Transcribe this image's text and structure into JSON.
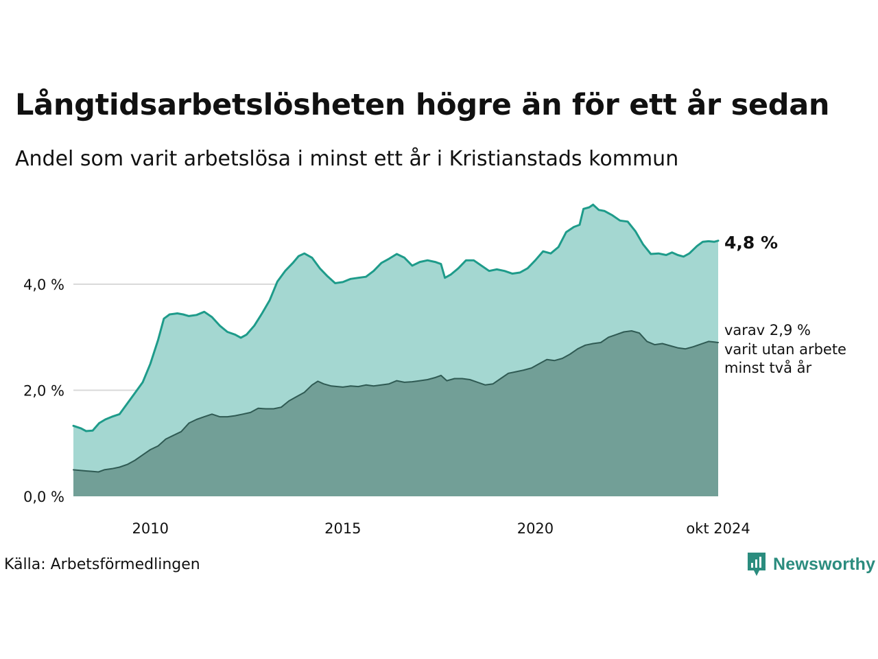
{
  "title": "Långtidsarbetslösheten högre än för ett år sedan",
  "subtitle": "Andel som varit arbetslösa i minst ett år i Kristianstads kommun",
  "source": "Källa: Arbetsförmedlingen",
  "logo_text": "Newsworthy",
  "colors": {
    "main_line": "#1e9b8a",
    "main_fill": "#a4d7d1",
    "sub_line": "#2f5a53",
    "sub_fill": "#729f97",
    "grid": "#d9d9d9",
    "text": "#111111"
  },
  "chart_data": {
    "type": "area",
    "x_tick_labels": [
      {
        "x": 2010,
        "label": "2010"
      },
      {
        "x": 2015,
        "label": "2015"
      },
      {
        "x": 2020,
        "label": "2020"
      },
      {
        "x": 2024.75,
        "label": "okt 2024"
      }
    ],
    "y_tick_labels": [
      {
        "y": 0,
        "label": "0,0 %"
      },
      {
        "y": 2,
        "label": "2,0 %"
      },
      {
        "y": 4,
        "label": "4,0 %"
      }
    ],
    "xlim": [
      2008.0,
      2024.75
    ],
    "ylim": [
      0,
      5.8
    ],
    "grid": true,
    "annotations": {
      "main_end": "4,8 %",
      "sub_end_lines": [
        "varav 2,9 %",
        "varit utan arbete",
        "minst två år"
      ]
    },
    "series": [
      {
        "key": "minst_ett_ar",
        "points": [
          [
            2008.0,
            1.33
          ],
          [
            2008.2,
            1.28
          ],
          [
            2008.33,
            1.23
          ],
          [
            2008.5,
            1.24
          ],
          [
            2008.67,
            1.38
          ],
          [
            2008.83,
            1.45
          ],
          [
            2009.0,
            1.5
          ],
          [
            2009.2,
            1.55
          ],
          [
            2009.4,
            1.75
          ],
          [
            2009.6,
            1.95
          ],
          [
            2009.8,
            2.15
          ],
          [
            2010.0,
            2.5
          ],
          [
            2010.2,
            2.95
          ],
          [
            2010.35,
            3.35
          ],
          [
            2010.5,
            3.43
          ],
          [
            2010.7,
            3.45
          ],
          [
            2010.85,
            3.43
          ],
          [
            2011.0,
            3.4
          ],
          [
            2011.2,
            3.42
          ],
          [
            2011.4,
            3.48
          ],
          [
            2011.6,
            3.38
          ],
          [
            2011.8,
            3.22
          ],
          [
            2012.0,
            3.1
          ],
          [
            2012.2,
            3.05
          ],
          [
            2012.35,
            2.99
          ],
          [
            2012.5,
            3.05
          ],
          [
            2012.7,
            3.22
          ],
          [
            2012.9,
            3.45
          ],
          [
            2013.1,
            3.7
          ],
          [
            2013.3,
            4.05
          ],
          [
            2013.5,
            4.25
          ],
          [
            2013.7,
            4.4
          ],
          [
            2013.85,
            4.53
          ],
          [
            2014.0,
            4.58
          ],
          [
            2014.2,
            4.5
          ],
          [
            2014.4,
            4.3
          ],
          [
            2014.6,
            4.15
          ],
          [
            2014.8,
            4.02
          ],
          [
            2015.0,
            4.04
          ],
          [
            2015.2,
            4.1
          ],
          [
            2015.4,
            4.12
          ],
          [
            2015.6,
            4.14
          ],
          [
            2015.8,
            4.25
          ],
          [
            2016.0,
            4.4
          ],
          [
            2016.2,
            4.48
          ],
          [
            2016.4,
            4.57
          ],
          [
            2016.6,
            4.5
          ],
          [
            2016.8,
            4.35
          ],
          [
            2017.0,
            4.42
          ],
          [
            2017.2,
            4.45
          ],
          [
            2017.4,
            4.42
          ],
          [
            2017.55,
            4.38
          ],
          [
            2017.65,
            4.12
          ],
          [
            2017.8,
            4.18
          ],
          [
            2018.0,
            4.3
          ],
          [
            2018.2,
            4.45
          ],
          [
            2018.4,
            4.45
          ],
          [
            2018.6,
            4.35
          ],
          [
            2018.8,
            4.25
          ],
          [
            2019.0,
            4.28
          ],
          [
            2019.2,
            4.25
          ],
          [
            2019.4,
            4.2
          ],
          [
            2019.6,
            4.22
          ],
          [
            2019.8,
            4.3
          ],
          [
            2020.0,
            4.45
          ],
          [
            2020.2,
            4.62
          ],
          [
            2020.4,
            4.58
          ],
          [
            2020.6,
            4.7
          ],
          [
            2020.8,
            4.98
          ],
          [
            2021.0,
            5.08
          ],
          [
            2021.15,
            5.12
          ],
          [
            2021.25,
            5.42
          ],
          [
            2021.4,
            5.45
          ],
          [
            2021.5,
            5.5
          ],
          [
            2021.65,
            5.4
          ],
          [
            2021.8,
            5.38
          ],
          [
            2022.0,
            5.3
          ],
          [
            2022.2,
            5.2
          ],
          [
            2022.4,
            5.18
          ],
          [
            2022.6,
            5.0
          ],
          [
            2022.8,
            4.75
          ],
          [
            2023.0,
            4.57
          ],
          [
            2023.2,
            4.58
          ],
          [
            2023.4,
            4.55
          ],
          [
            2023.55,
            4.6
          ],
          [
            2023.7,
            4.55
          ],
          [
            2023.85,
            4.52
          ],
          [
            2024.0,
            4.58
          ],
          [
            2024.2,
            4.72
          ],
          [
            2024.35,
            4.8
          ],
          [
            2024.5,
            4.81
          ],
          [
            2024.65,
            4.8
          ],
          [
            2024.75,
            4.82
          ]
        ]
      },
      {
        "key": "minst_tva_ar",
        "points": [
          [
            2008.0,
            0.5
          ],
          [
            2008.3,
            0.48
          ],
          [
            2008.5,
            0.47
          ],
          [
            2008.65,
            0.46
          ],
          [
            2008.8,
            0.5
          ],
          [
            2009.0,
            0.52
          ],
          [
            2009.2,
            0.55
          ],
          [
            2009.4,
            0.6
          ],
          [
            2009.6,
            0.68
          ],
          [
            2009.8,
            0.78
          ],
          [
            2010.0,
            0.88
          ],
          [
            2010.2,
            0.95
          ],
          [
            2010.4,
            1.08
          ],
          [
            2010.6,
            1.15
          ],
          [
            2010.8,
            1.22
          ],
          [
            2011.0,
            1.38
          ],
          [
            2011.2,
            1.45
          ],
          [
            2011.4,
            1.5
          ],
          [
            2011.6,
            1.55
          ],
          [
            2011.8,
            1.5
          ],
          [
            2012.0,
            1.5
          ],
          [
            2012.2,
            1.52
          ],
          [
            2012.4,
            1.55
          ],
          [
            2012.6,
            1.58
          ],
          [
            2012.8,
            1.66
          ],
          [
            2013.0,
            1.65
          ],
          [
            2013.2,
            1.65
          ],
          [
            2013.4,
            1.68
          ],
          [
            2013.6,
            1.8
          ],
          [
            2013.8,
            1.88
          ],
          [
            2014.0,
            1.96
          ],
          [
            2014.2,
            2.1
          ],
          [
            2014.35,
            2.17
          ],
          [
            2014.5,
            2.12
          ],
          [
            2014.7,
            2.08
          ],
          [
            2015.0,
            2.06
          ],
          [
            2015.2,
            2.08
          ],
          [
            2015.4,
            2.07
          ],
          [
            2015.6,
            2.1
          ],
          [
            2015.8,
            2.08
          ],
          [
            2016.0,
            2.1
          ],
          [
            2016.2,
            2.12
          ],
          [
            2016.4,
            2.18
          ],
          [
            2016.6,
            2.15
          ],
          [
            2016.8,
            2.16
          ],
          [
            2017.0,
            2.18
          ],
          [
            2017.2,
            2.2
          ],
          [
            2017.4,
            2.24
          ],
          [
            2017.55,
            2.28
          ],
          [
            2017.7,
            2.18
          ],
          [
            2017.9,
            2.22
          ],
          [
            2018.1,
            2.22
          ],
          [
            2018.3,
            2.2
          ],
          [
            2018.5,
            2.15
          ],
          [
            2018.7,
            2.1
          ],
          [
            2018.9,
            2.12
          ],
          [
            2019.1,
            2.22
          ],
          [
            2019.3,
            2.32
          ],
          [
            2019.5,
            2.35
          ],
          [
            2019.7,
            2.38
          ],
          [
            2019.9,
            2.42
          ],
          [
            2020.1,
            2.5
          ],
          [
            2020.3,
            2.58
          ],
          [
            2020.5,
            2.56
          ],
          [
            2020.7,
            2.6
          ],
          [
            2020.9,
            2.68
          ],
          [
            2021.1,
            2.78
          ],
          [
            2021.3,
            2.85
          ],
          [
            2021.5,
            2.88
          ],
          [
            2021.7,
            2.9
          ],
          [
            2021.9,
            3.0
          ],
          [
            2022.1,
            3.05
          ],
          [
            2022.3,
            3.1
          ],
          [
            2022.5,
            3.12
          ],
          [
            2022.7,
            3.08
          ],
          [
            2022.9,
            2.92
          ],
          [
            2023.1,
            2.86
          ],
          [
            2023.3,
            2.88
          ],
          [
            2023.5,
            2.84
          ],
          [
            2023.7,
            2.8
          ],
          [
            2023.9,
            2.78
          ],
          [
            2024.1,
            2.82
          ],
          [
            2024.3,
            2.87
          ],
          [
            2024.5,
            2.92
          ],
          [
            2024.65,
            2.91
          ],
          [
            2024.75,
            2.9
          ]
        ]
      }
    ]
  }
}
